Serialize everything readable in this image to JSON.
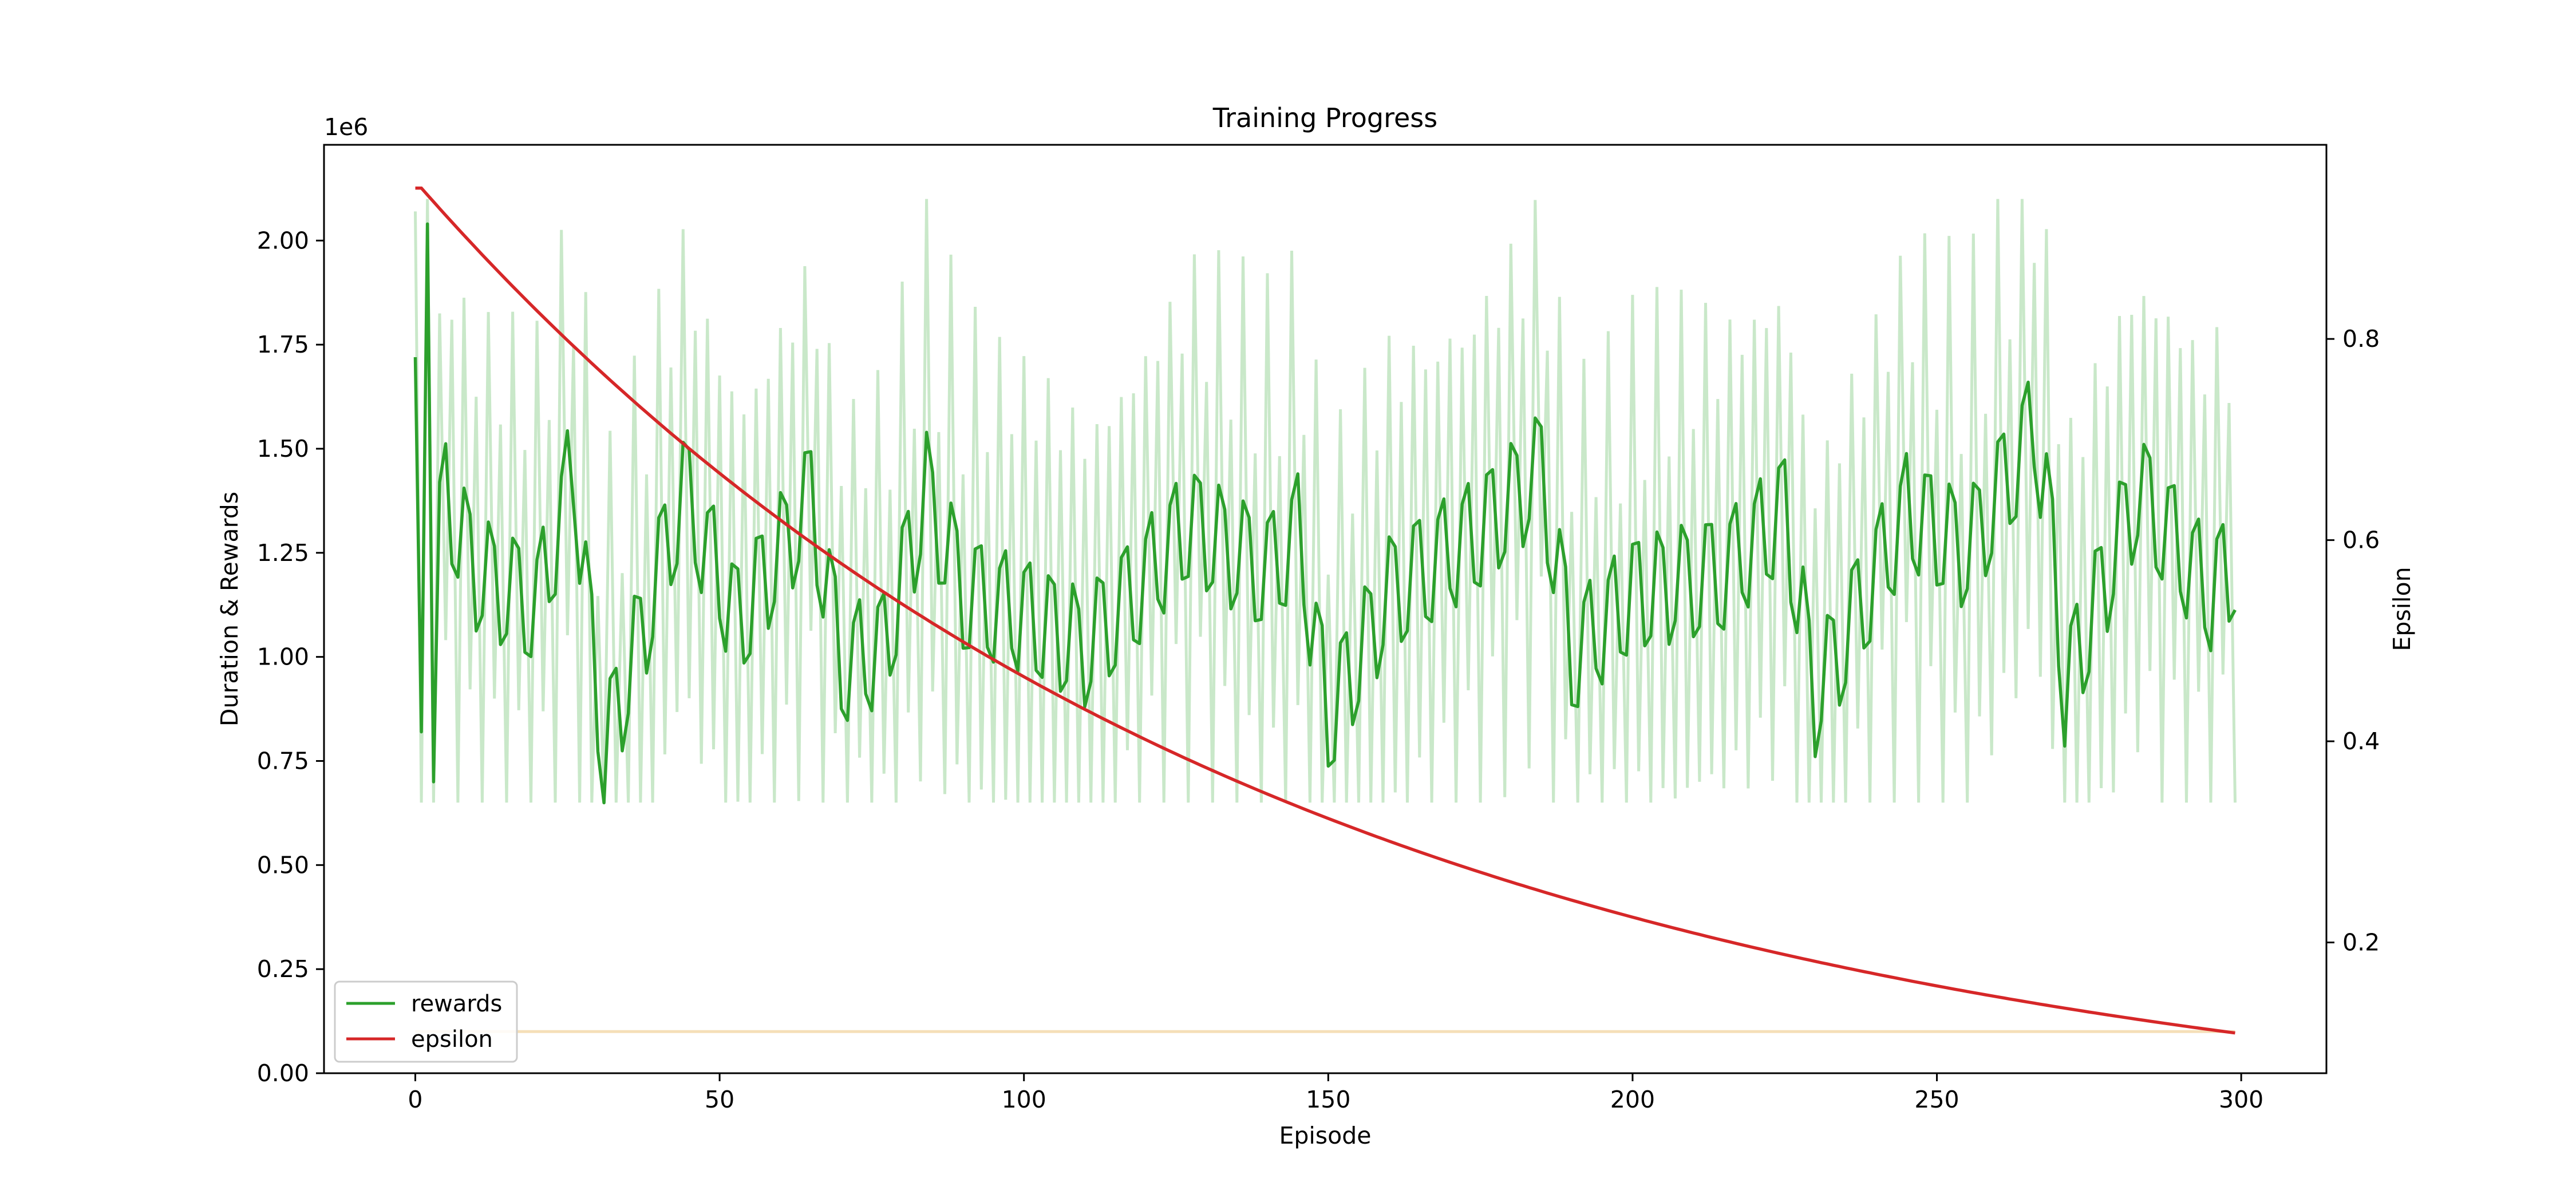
{
  "chart_data": {
    "type": "line",
    "title": "Training Progress",
    "xlabel": "Episode",
    "ylabel_left": "Duration & Rewards",
    "ylabel_right": "Epsilon",
    "left_axis_multiplier_label": "1e6",
    "xlim": [
      -15,
      314
    ],
    "ylim_left": [
      0,
      2.23
    ],
    "ylim_right": [
      0.07,
      0.993
    ],
    "x_ticks": [
      0,
      50,
      100,
      150,
      200,
      250,
      300
    ],
    "y_left_ticks": [
      0,
      0.25,
      0.5,
      0.75,
      1.0,
      1.25,
      1.5,
      1.75,
      2.0
    ],
    "y_left_tick_labels": [
      "0.00",
      "0.25",
      "0.50",
      "0.75",
      "1.00",
      "1.25",
      "1.50",
      "1.75",
      "2.00"
    ],
    "y_right_ticks": [
      0.2,
      0.4,
      0.6,
      0.8
    ],
    "y_right_tick_labels": [
      "0.2",
      "0.4",
      "0.6",
      "0.8"
    ],
    "legend": {
      "placement": "lower-left",
      "entries": [
        "rewards",
        "epsilon"
      ]
    },
    "grid": false,
    "series": [
      {
        "name": "rewards",
        "axis": "left",
        "units": "1e6",
        "color": "#2ca02c",
        "smoothed_anchor_x": [
          0,
          1,
          2,
          3,
          4,
          10,
          20,
          26,
          29,
          31,
          38,
          44,
          53,
          65,
          70,
          77,
          84,
          90,
          100,
          110,
          118,
          127,
          140,
          145,
          150,
          160,
          175,
          185,
          190,
          200,
          215,
          225,
          230,
          245,
          255,
          266,
          268,
          271,
          283,
          295,
          299
        ],
        "smoothed_anchor_y": [
          1.72,
          0.82,
          2.04,
          0.7,
          1.42,
          1.2,
          1.12,
          1.46,
          1.02,
          0.77,
          1.1,
          1.4,
          1.08,
          1.38,
          0.98,
          1.02,
          1.4,
          1.15,
          1.1,
          1.02,
          1.15,
          1.32,
          1.2,
          1.3,
          0.85,
          1.15,
          1.3,
          1.45,
          1.0,
          1.15,
          1.2,
          1.35,
          0.9,
          1.35,
          1.25,
          1.55,
          1.4,
          0.92,
          1.4,
          1.15,
          1.23
        ],
        "oscillation_amplitude": 0.14,
        "oscillation_period": 4
      },
      {
        "name": "raw_rewards",
        "axis": "left",
        "units": "1e6",
        "color": "#c9e8c9",
        "envelope_low": 0.7,
        "envelope_high": 1.95
      },
      {
        "name": "epsilon",
        "axis": "right",
        "color": "#d62728",
        "start": 0.95,
        "hold_until_episode": 1,
        "end": 0.11,
        "end_episode": 299
      },
      {
        "name": "duration",
        "axis": "left",
        "units": "1e6",
        "color": "#f5dfb8",
        "x": [
          0,
          299
        ],
        "y": [
          0.1,
          0.1
        ]
      }
    ]
  }
}
